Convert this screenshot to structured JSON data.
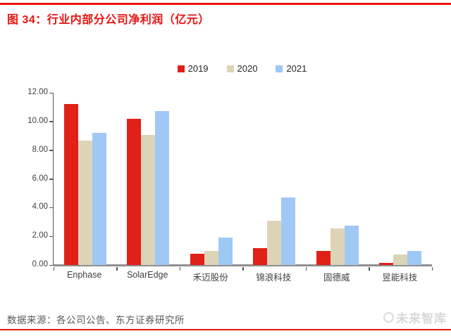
{
  "page": {
    "title": "图 34：行业内部分公司净利润（亿元）",
    "source_note": "数据来源：各公司公告、东方证券研究所",
    "watermark_text": "未来智库",
    "accent_red": "#e8130f",
    "text_dark": "#404040",
    "axis_gray": "#8f8f8f"
  },
  "chart_data": {
    "type": "bar",
    "title": "图 34：行业内部分公司净利润（亿元）",
    "categories": [
      "Enphase",
      "SolarEdge",
      "禾迈股份",
      "锦浪科技",
      "固德威",
      "昱能科技"
    ],
    "series": [
      {
        "name": "2019",
        "color": "#e02118",
        "values": [
          11.2,
          10.2,
          0.8,
          1.2,
          1.0,
          0.15
        ]
      },
      {
        "name": "2020",
        "color": "#ddd4b8",
        "values": [
          8.65,
          9.05,
          1.0,
          3.1,
          2.55,
          0.75
        ]
      },
      {
        "name": "2021",
        "color": "#9fc8f5",
        "values": [
          9.2,
          10.75,
          1.9,
          4.7,
          2.75,
          1.0
        ]
      }
    ],
    "xlabel": "",
    "ylabel": "",
    "ylim": [
      0,
      12
    ],
    "y_ticks": [
      "0.00",
      "2.00",
      "4.00",
      "6.00",
      "8.00",
      "10.00",
      "12.00"
    ],
    "grid": false,
    "legend_position": "top-center"
  }
}
